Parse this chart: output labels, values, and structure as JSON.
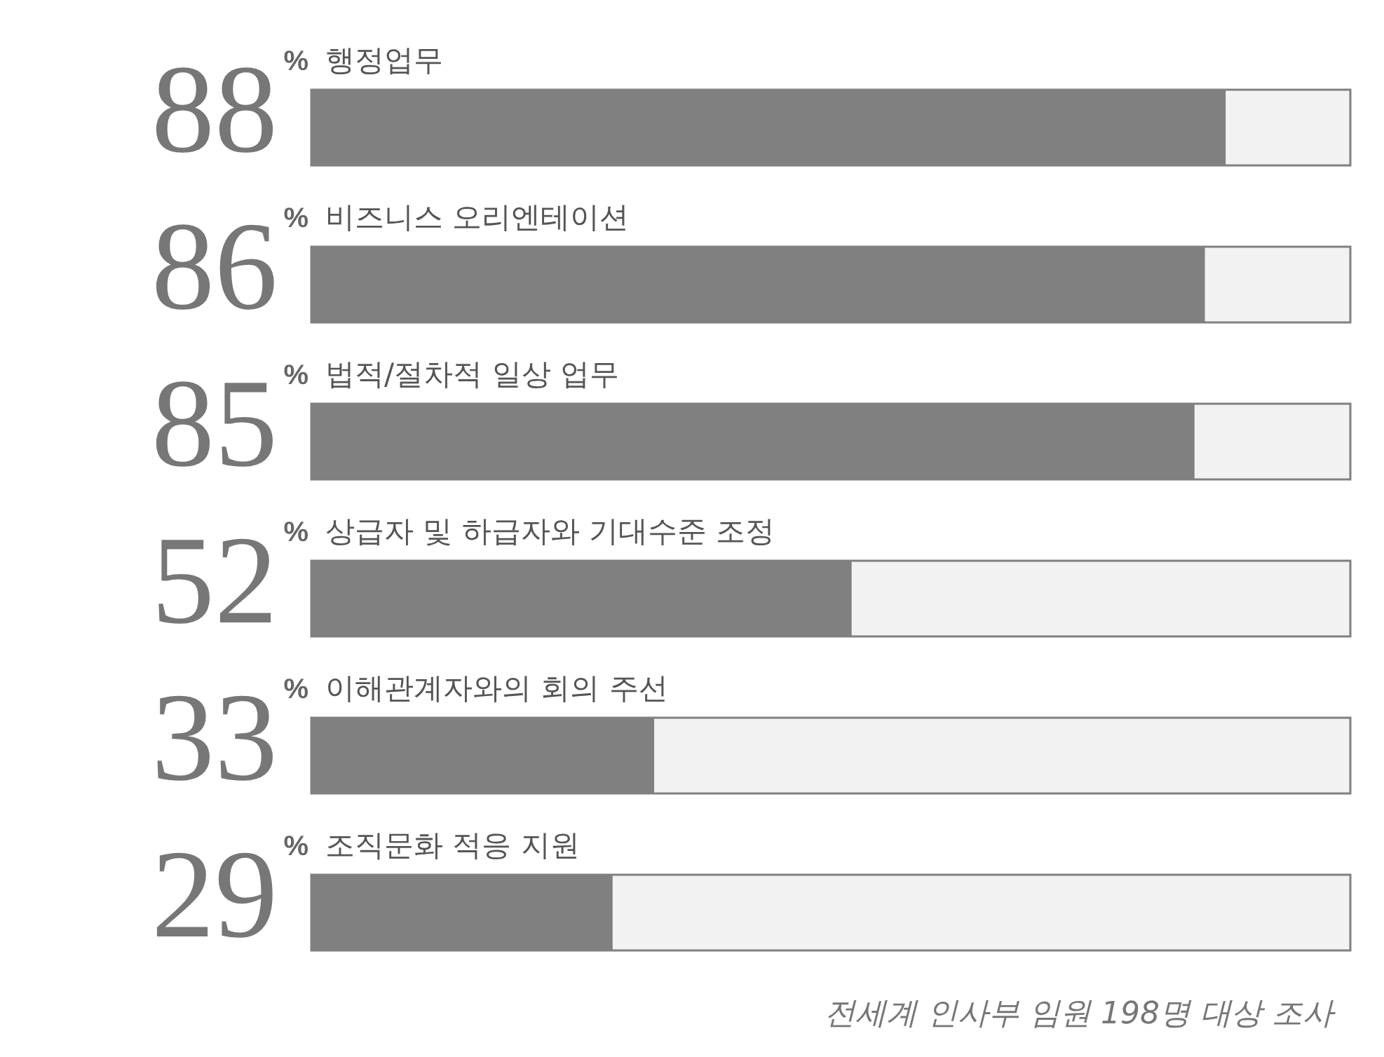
{
  "chart_data": {
    "type": "bar",
    "orientation": "horizontal",
    "categories": [
      "행정업무",
      "비즈니스 오리엔테이션",
      "법적/절차적 일상 업무",
      "상급자 및 하급자와 기대수준 조정",
      "이해관계자와의 회의 주선",
      "조직문화 적응 지원"
    ],
    "values": [
      88,
      86,
      85,
      52,
      33,
      29
    ],
    "value_labels": [
      "88$^{%}$",
      "86$^{%}$",
      "85$^{%}$",
      "52$^{%}$",
      "33$^{%}$",
      "29$^{%}$"
    ],
    "color": "#808080",
    "xlim": [
      0,
      100
    ],
    "tick_labels": false,
    "annotations": [
      "전세계 인사부 임원 198명 대상 조사"
    ]
  }
}
